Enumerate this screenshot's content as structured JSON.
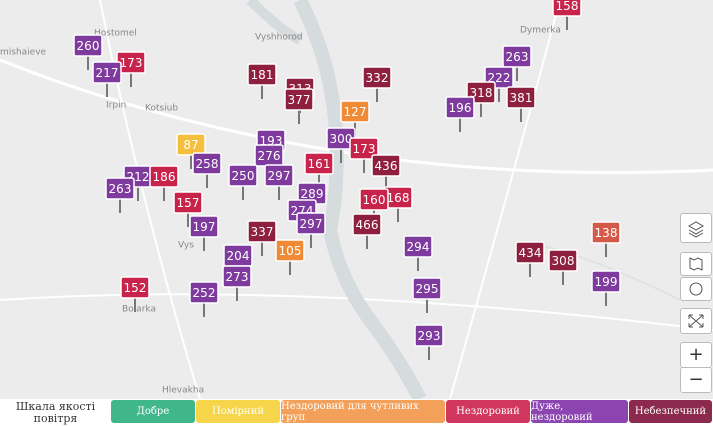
{
  "places": [
    "Hostomel",
    "Vyshhorod",
    "Dymerka",
    "Irpin",
    "Kotsiub",
    "Hlevakha",
    "mishaieve",
    "Vys",
    "Boiarka"
  ],
  "markers": [
    {
      "label": 158,
      "color": "#c8234a"
    },
    {
      "label": 260,
      "color": "#7f3a9e"
    },
    {
      "label": 173,
      "color": "#c8234a"
    },
    {
      "label": 217,
      "color": "#7f3a9e"
    },
    {
      "label": 181,
      "color": "#8e1f3f"
    },
    {
      "label": 313,
      "color": "#8e1f3f"
    },
    {
      "label": 332,
      "color": "#8e1f3f"
    },
    {
      "label": 263,
      "color": "#7f3a9e"
    },
    {
      "label": 222,
      "color": "#7f3a9e"
    },
    {
      "label": 318,
      "color": "#8e1f3f"
    },
    {
      "label": 381,
      "color": "#8e1f3f"
    },
    {
      "label": 196,
      "color": "#7f3a9e"
    },
    {
      "label": 377,
      "color": "#8e1f3f"
    },
    {
      "label": 127,
      "color": "#f08a36"
    },
    {
      "label": 87,
      "color": "#f3bf3c"
    },
    {
      "label": 300,
      "color": "#7f3a9e"
    },
    {
      "label": 193,
      "color": "#7f3a9e"
    },
    {
      "label": 276,
      "color": "#7f3a9e"
    },
    {
      "label": 173,
      "color": "#c8234a"
    },
    {
      "label": 436,
      "color": "#8e1f3f"
    },
    {
      "label": 161,
      "color": "#c8234a"
    },
    {
      "label": 258,
      "color": "#7f3a9e"
    },
    {
      "label": 250,
      "color": "#7f3a9e"
    },
    {
      "label": 212,
      "color": "#7f3a9e"
    },
    {
      "label": 186,
      "color": "#c8234a"
    },
    {
      "label": 297,
      "color": "#7f3a9e"
    },
    {
      "label": 263,
      "color": "#7f3a9e"
    },
    {
      "label": 289,
      "color": "#7f3a9e"
    },
    {
      "label": 168,
      "color": "#c8234a"
    },
    {
      "label": 157,
      "color": "#c8234a"
    },
    {
      "label": 160,
      "color": "#c8234a"
    },
    {
      "label": 274,
      "color": "#7f3a9e"
    },
    {
      "label": 197,
      "color": "#7f3a9e"
    },
    {
      "label": 297,
      "color": "#7f3a9e"
    },
    {
      "label": 337,
      "color": "#8e1f3f"
    },
    {
      "label": 466,
      "color": "#8e1f3f"
    },
    {
      "label": 294,
      "color": "#7f3a9e"
    },
    {
      "label": 105,
      "color": "#f08a36"
    },
    {
      "label": 204,
      "color": "#7f3a9e"
    },
    {
      "label": 434,
      "color": "#8e1f3f"
    },
    {
      "label": 138,
      "color": "#d35a48"
    },
    {
      "label": 308,
      "color": "#8e1f3f"
    },
    {
      "label": 273,
      "color": "#7f3a9e"
    },
    {
      "label": 199,
      "color": "#7f3a9e"
    },
    {
      "label": 152,
      "color": "#c8234a"
    },
    {
      "label": 295,
      "color": "#7f3a9e"
    },
    {
      "label": 252,
      "color": "#7f3a9e"
    },
    {
      "label": 293,
      "color": "#7f3a9e"
    }
  ],
  "legend": {
    "title": "Шкала якості повітря",
    "levels": [
      {
        "label": "Добре",
        "color": "#3fb68b"
      },
      {
        "label": "Помірний",
        "color": "#f6d54a"
      },
      {
        "label": "Нездоровий для чутливих груп",
        "color": "#f2a05a"
      },
      {
        "label": "Нездоровий",
        "color": "#d0365e"
      },
      {
        "label": "Дуже, нездоровий",
        "color": "#8c45b0"
      },
      {
        "label": "Небезпечний",
        "color": "#8b2a4c"
      }
    ]
  },
  "controls": {
    "zoom_in": "+",
    "zoom_out": "−"
  }
}
